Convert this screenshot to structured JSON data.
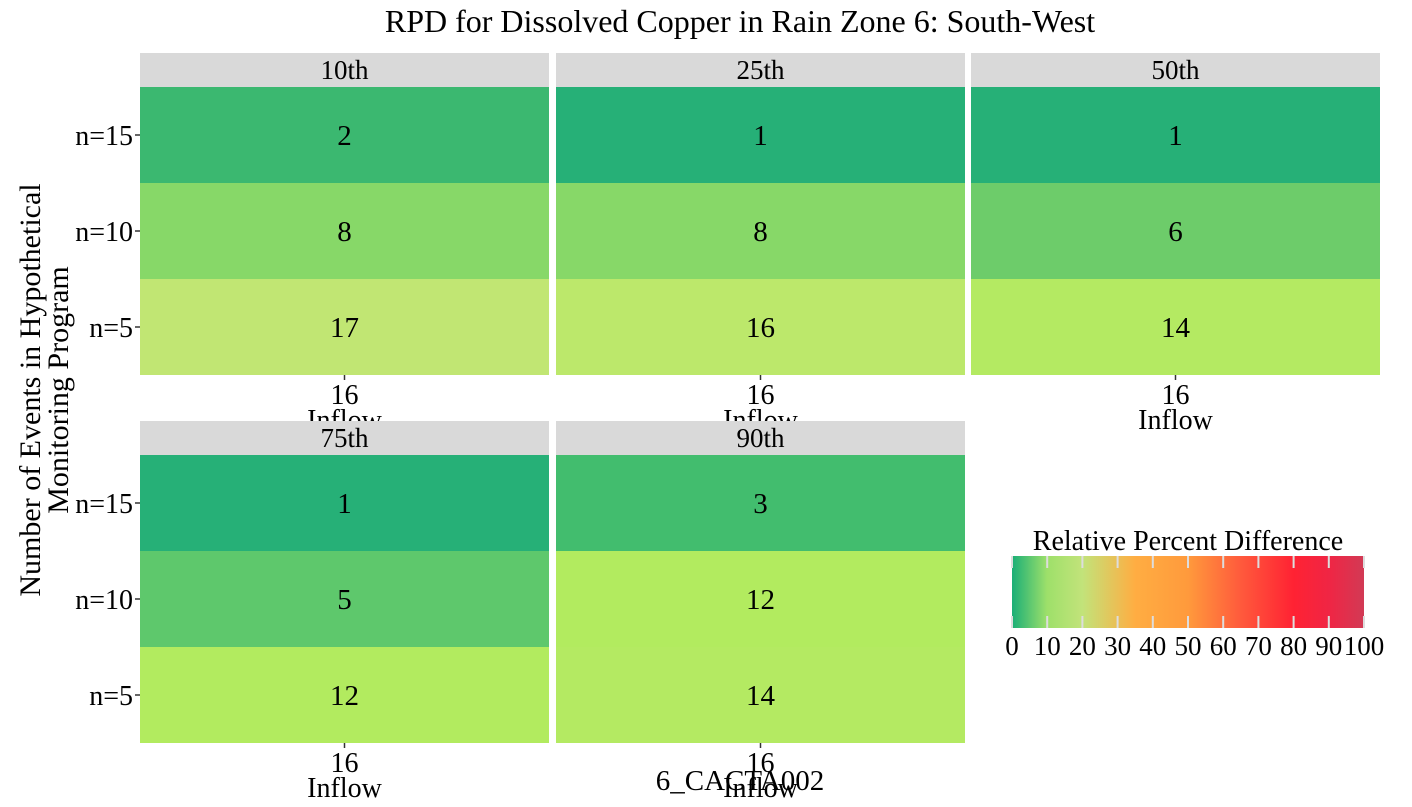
{
  "chart_data": {
    "type": "heatmap",
    "title": "RPD for Dissolved Copper in Rain Zone 6: South-West",
    "xlabel": "6_CACTA002",
    "ylabel_lines": [
      "Number of Events in Hypothetical",
      "Monitoring Program"
    ],
    "x_tick_value": "16",
    "x_tick_category": "Inflow",
    "rows": [
      "n=15",
      "n=10",
      "n=5"
    ],
    "panels": [
      {
        "label": "10th",
        "values": [
          2,
          8,
          17
        ]
      },
      {
        "label": "25th",
        "values": [
          1,
          8,
          16
        ]
      },
      {
        "label": "50th",
        "values": [
          1,
          6,
          14
        ]
      },
      {
        "label": "75th",
        "values": [
          1,
          5,
          12
        ]
      },
      {
        "label": "90th",
        "values": [
          3,
          12,
          14
        ]
      }
    ],
    "legend": {
      "title": "Relative Percent Difference",
      "range": [
        0,
        100
      ],
      "ticks": [
        "0",
        "10",
        "20",
        "30",
        "40",
        "50",
        "60",
        "70",
        "80",
        "90",
        "100"
      ],
      "placement": "bottom-right",
      "color_stops": [
        {
          "value": 0,
          "color": "#1aaf77"
        },
        {
          "value": 10,
          "color": "#9ee06a"
        },
        {
          "value": 20,
          "color": "#c2e37a"
        },
        {
          "value": 35,
          "color": "#ffad42"
        },
        {
          "value": 50,
          "color": "#ff9a3c"
        },
        {
          "value": 65,
          "color": "#ff5a3c"
        },
        {
          "value": 80,
          "color": "#ff2233"
        },
        {
          "value": 90,
          "color": "#f02544"
        },
        {
          "value": 100,
          "color": "#d23a55"
        }
      ]
    },
    "cell_colors": {
      "1": "#26b077",
      "2": "#3bb870",
      "3": "#42bd6e",
      "5": "#5ec86c",
      "6": "#6dcc6a",
      "8": "#87d868",
      "12": "#b2eb5f",
      "14": "#b4ea62",
      "16": "#bce86b",
      "17": "#c1e673"
    },
    "strip_color": "#d9d9d9"
  }
}
